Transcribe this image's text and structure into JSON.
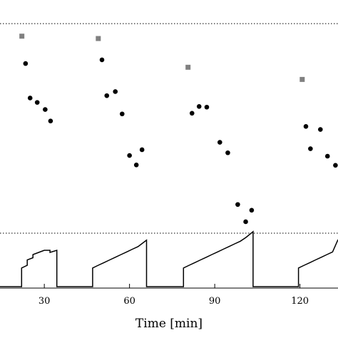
{
  "chart_data": {
    "type": "scatter",
    "title": "",
    "xlabel": "Time [min]",
    "ylabel": "",
    "xlim": [
      14.4,
      133.4
    ],
    "x_ticks": [
      30,
      60,
      90,
      120
    ],
    "x_tick_labels": [
      "30",
      "60",
      "90",
      "120"
    ],
    "grid": false,
    "legend": "none",
    "upper_panel": {
      "ylim": [
        0,
        1
      ],
      "reference_line": 0.93,
      "series": [
        {
          "marker": "square",
          "color": "#808080",
          "x": [
            22.1,
            49.0,
            80.6,
            120.8
          ],
          "y": [
            0.893,
            0.886,
            0.801,
            0.765
          ]
        },
        {
          "marker": "circle",
          "color": "#000000",
          "x": [
            23.4,
            25.0,
            27.5,
            30.3,
            32.2,
            50.3,
            52.0,
            55.0,
            57.4,
            60.0,
            62.4,
            64.4,
            82.0,
            84.5,
            87.2,
            91.8,
            94.6,
            98.1,
            100.9,
            103.0,
            122.1,
            123.7,
            127.2,
            129.7,
            132.5
          ],
          "y": [
            0.812,
            0.71,
            0.697,
            0.676,
            0.642,
            0.823,
            0.717,
            0.729,
            0.663,
            0.54,
            0.512,
            0.557,
            0.665,
            0.685,
            0.683,
            0.579,
            0.548,
            0.395,
            0.344,
            0.378,
            0.626,
            0.56,
            0.617,
            0.538,
            0.511
          ]
        }
      ]
    },
    "lower_panel": {
      "ylim": [
        0,
        1
      ],
      "reference_line": 1.0,
      "type": "line",
      "color": "#000000",
      "segments": [
        {
          "x": [
            14.4,
            22.0,
            22.0,
            24.0,
            24.0,
            26.0,
            26.0,
            28.0,
            28.0,
            30.0,
            30.0,
            32.0,
            32.0,
            34.4,
            34.4,
            47.0,
            47.0,
            49.0,
            49.0,
            51.0,
            51.0,
            53.0,
            53.0,
            55.0,
            55.0,
            57.0,
            57.0,
            59.0,
            59.0,
            61.0,
            61.0,
            63.0,
            63.0,
            66.0,
            66.0,
            79.0,
            79.0,
            81.0,
            81.0,
            83.0,
            83.0,
            85.0,
            85.0,
            87.0,
            87.0,
            89.0,
            89.0,
            91.0,
            91.0,
            93.0,
            93.0,
            95.0,
            95.0,
            97.0,
            97.0,
            99.0,
            99.0,
            101.0,
            101.0,
            103.5,
            103.5,
            107.0,
            107.0,
            119.5,
            119.5,
            121.5,
            121.5,
            123.5,
            123.5,
            125.5,
            125.5,
            127.5,
            127.5,
            129.5,
            129.5,
            131.5,
            131.5,
            133.4
          ],
          "y": [
            0.0,
            0.0,
            0.35,
            0.4,
            0.5,
            0.54,
            0.6,
            0.64,
            0.64,
            0.68,
            0.68,
            0.68,
            0.64,
            0.68,
            0.0,
            0.0,
            0.35,
            0.4,
            0.4,
            0.45,
            0.45,
            0.5,
            0.5,
            0.55,
            0.55,
            0.6,
            0.6,
            0.65,
            0.65,
            0.7,
            0.7,
            0.75,
            0.75,
            0.87,
            0.0,
            0.0,
            0.35,
            0.4,
            0.4,
            0.45,
            0.45,
            0.5,
            0.5,
            0.55,
            0.55,
            0.6,
            0.6,
            0.65,
            0.65,
            0.7,
            0.7,
            0.75,
            0.75,
            0.8,
            0.8,
            0.85,
            0.85,
            0.92,
            0.92,
            1.03,
            0.0,
            0.0,
            0.0,
            0.0,
            0.35,
            0.4,
            0.4,
            0.45,
            0.45,
            0.5,
            0.5,
            0.55,
            0.55,
            0.6,
            0.6,
            0.65,
            0.65,
            0.88
          ]
        }
      ]
    }
  }
}
